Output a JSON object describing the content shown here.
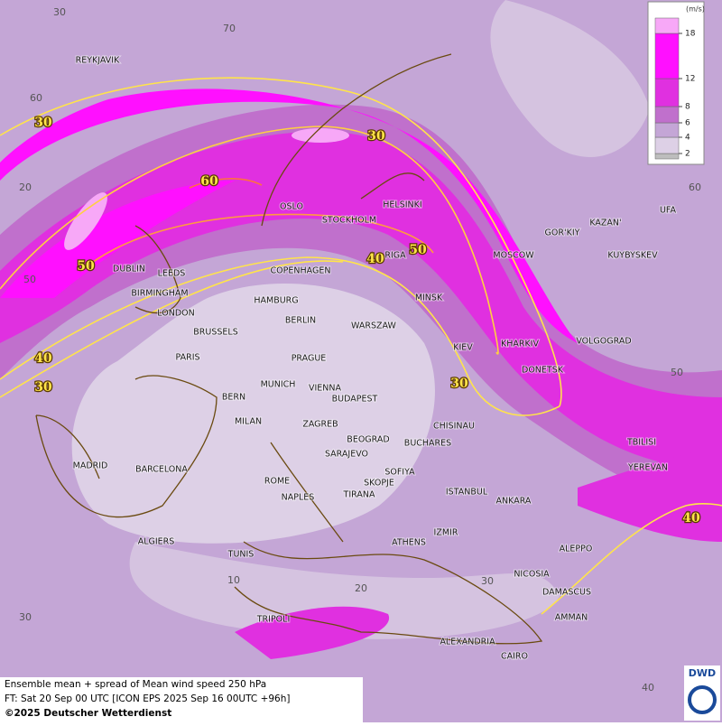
{
  "map": {
    "legend": {
      "unit": "(m/s)",
      "ticks": [
        2,
        4,
        6,
        8,
        12,
        18
      ],
      "colors": [
        "#bdbdbd",
        "#ddd0e6",
        "#c4a6d6",
        "#c070cc",
        "#e030e0",
        "#ff10ff",
        "#f7a8f7"
      ]
    },
    "cities": [
      "REYKJAVIK",
      "OSLO",
      "STOCKHOLM",
      "HELSINKI",
      "RIGA",
      "COPENHAGEN",
      "DUBLIN",
      "LEEDS",
      "BIRMINGHAM",
      "LONDON",
      "HAMBURG",
      "BERLIN",
      "WARSZAW",
      "MINSK",
      "MOSCOW",
      "GOR'KIY",
      "KAZAN'",
      "UFA",
      "KUYBYSKEV",
      "KIEV",
      "KHARKIV",
      "VOLGOGRAD",
      "DONETSK",
      "BRUSSELS",
      "PARIS",
      "PRAGUE",
      "MUNICH",
      "VIENNA",
      "BUDAPEST",
      "BERN",
      "MILAN",
      "ZAGREB",
      "BEOGRAD",
      "BUCHARES",
      "CHISINAU",
      "TBILISI",
      "YEREVAN",
      "MADRID",
      "BARCELONA",
      "SARAJEVO",
      "SOFIYA",
      "SKOPJE",
      "TIRANA",
      "ROME",
      "NAPLES",
      "ISTANBUL",
      "ANKARA",
      "IZMIR",
      "ATHENS",
      "ALGIERS",
      "TUNIS",
      "ALEPPO",
      "NICOSIA",
      "DAMASCUS",
      "AMMAN",
      "TRIPOLI",
      "ALEXANDRIA",
      "CAIRO"
    ],
    "contour_labels": [
      30,
      30,
      60,
      50,
      50,
      40,
      40,
      30,
      30,
      40
    ],
    "graticule_labels": [
      30,
      70,
      60,
      20,
      50,
      60,
      50,
      10,
      20,
      30,
      30,
      40
    ],
    "footer": [
      "Ensemble mean + spread of Mean wind speed 250 hPa",
      "FT: Sat 20 Sep 00 UTC [ICON EPS 2025 Sep 16 00UTC +96h]",
      "©2025 Deutscher Wetterdienst"
    ],
    "logo": "DWD"
  }
}
